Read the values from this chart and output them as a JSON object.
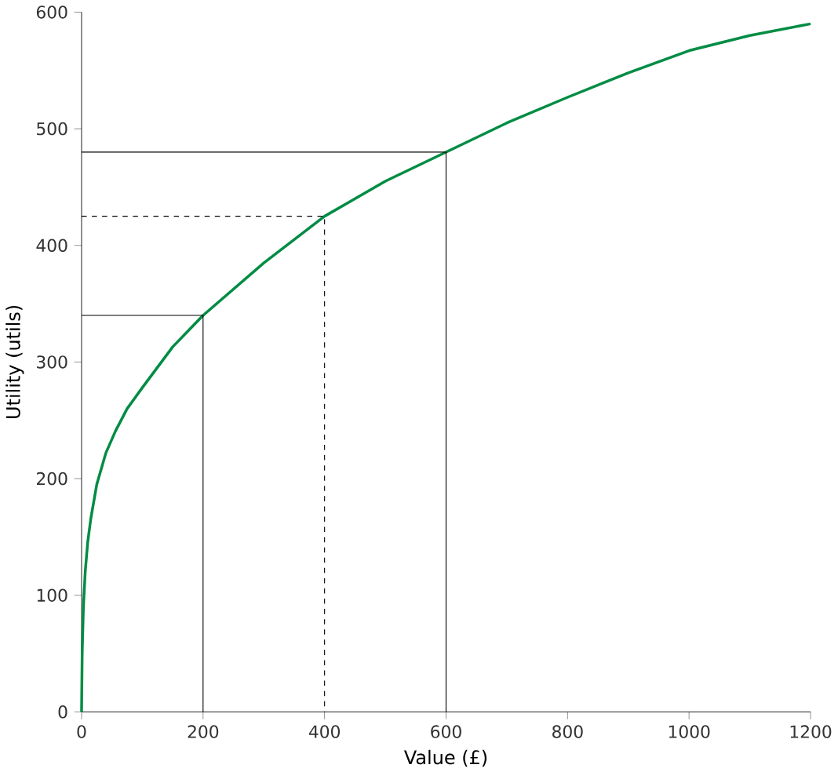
{
  "chart_data": {
    "type": "line",
    "xlabel": "Value (£)",
    "ylabel": "Utility (utils)",
    "xlim": [
      0,
      1200
    ],
    "ylim": [
      0,
      600
    ],
    "xticks": [
      0,
      200,
      400,
      600,
      800,
      1000,
      1200
    ],
    "yticks": [
      0,
      100,
      200,
      300,
      400,
      500,
      600
    ],
    "marker": "none",
    "series": [
      {
        "color": "#008c44",
        "line_style": "solid",
        "x": [
          0,
          1,
          3,
          6,
          10,
          15,
          25,
          40,
          56,
          75,
          100,
          150,
          200,
          300,
          400,
          500,
          600,
          700,
          800,
          900,
          1000,
          1100,
          1200
        ],
        "values": [
          0,
          50,
          90,
          120,
          145,
          165,
          195,
          222,
          241,
          260,
          278,
          313,
          340,
          385,
          425,
          455,
          480,
          505,
          527,
          548,
          567,
          580,
          590
        ]
      },
      {
        "color": "#000000",
        "line_style": "solid",
        "x": [
          0,
          200,
          200
        ],
        "values": [
          340,
          340,
          0
        ]
      },
      {
        "color": "#000000",
        "line_style": "dashed",
        "x": [
          0,
          400,
          400
        ],
        "values": [
          425,
          425,
          0
        ]
      },
      {
        "color": "#000000",
        "line_style": "solid",
        "x": [
          0,
          600,
          600
        ],
        "values": [
          480,
          480,
          0
        ]
      }
    ]
  }
}
